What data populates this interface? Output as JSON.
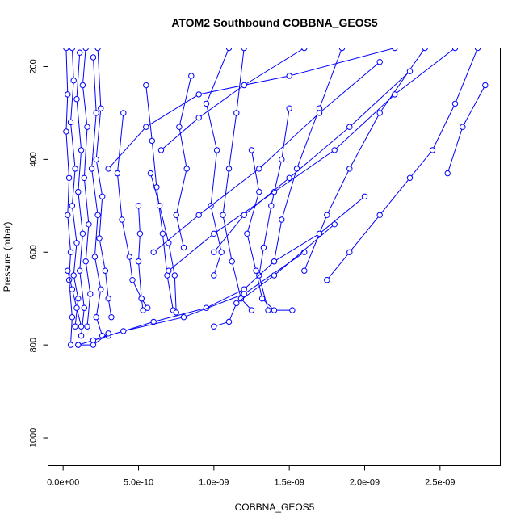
{
  "chart_data": {
    "type": "scatter",
    "title": "ATOM2 Southbound COBBNA_GEOS5",
    "xlabel": "COBBNA_GEOS5",
    "ylabel": "Pressure (mbar)",
    "xlim": [
      -1e-10,
      2.9e-09
    ],
    "ylim": [
      1060,
      160
    ],
    "y_reversed": true,
    "x_ticks": [
      {
        "value": 0,
        "label": "0.0e+00"
      },
      {
        "value": 5e-10,
        "label": "5.0e-10"
      },
      {
        "value": 1e-09,
        "label": "1.0e-09"
      },
      {
        "value": 1.5e-09,
        "label": "1.5e-09"
      },
      {
        "value": 2e-09,
        "label": "2.0e-09"
      },
      {
        "value": 2.5e-09,
        "label": "2.5e-09"
      }
    ],
    "y_ticks": [
      {
        "value": 200,
        "label": "200"
      },
      {
        "value": 400,
        "label": "400"
      },
      {
        "value": 600,
        "label": "600"
      },
      {
        "value": 800,
        "label": "800"
      },
      {
        "value": 1000,
        "label": "1000"
      }
    ],
    "color": "#0000ff",
    "marker": "open-circle",
    "line": true,
    "series": [
      {
        "points": [
          [
            2e-11,
            160
          ],
          [
            3e-11,
            260
          ],
          [
            2e-11,
            340
          ],
          [
            4e-11,
            440
          ],
          [
            3e-11,
            520
          ],
          [
            5e-11,
            600
          ],
          [
            4e-11,
            660
          ],
          [
            6e-11,
            740
          ],
          [
            5e-11,
            800
          ]
        ]
      },
      {
        "points": [
          [
            6e-11,
            160
          ],
          [
            7e-11,
            230
          ],
          [
            5e-11,
            320
          ],
          [
            8e-11,
            420
          ],
          [
            6e-11,
            500
          ],
          [
            9e-11,
            580
          ],
          [
            7e-11,
            650
          ],
          [
            1e-10,
            700
          ],
          [
            8e-11,
            760
          ]
        ]
      },
      {
        "points": [
          [
            1.1e-10,
            170
          ],
          [
            9e-11,
            270
          ],
          [
            1.2e-10,
            380
          ],
          [
            1e-10,
            470
          ],
          [
            1.3e-10,
            560
          ],
          [
            1.1e-10,
            640
          ],
          [
            1.4e-10,
            720
          ],
          [
            1.2e-10,
            780
          ]
        ]
      },
      {
        "points": [
          [
            1.5e-10,
            160
          ],
          [
            1.3e-10,
            240
          ],
          [
            1.6e-10,
            330
          ],
          [
            1.4e-10,
            440
          ],
          [
            1.7e-10,
            540
          ],
          [
            1.5e-10,
            620
          ],
          [
            1.8e-10,
            690
          ],
          [
            1.6e-10,
            760
          ]
        ]
      },
      {
        "points": [
          [
            2e-10,
            180
          ],
          [
            2.2e-10,
            300
          ],
          [
            1.9e-10,
            420
          ],
          [
            2.3e-10,
            520
          ],
          [
            2.1e-10,
            610
          ],
          [
            2.5e-10,
            680
          ],
          [
            2.2e-10,
            740
          ],
          [
            2.6e-10,
            780
          ]
        ]
      },
      {
        "points": [
          [
            2.3e-10,
            160
          ],
          [
            2.5e-10,
            290
          ],
          [
            2.2e-10,
            400
          ],
          [
            2.6e-10,
            480
          ],
          [
            2.4e-10,
            570
          ],
          [
            2.8e-10,
            640
          ],
          [
            3e-10,
            700
          ],
          [
            3.2e-10,
            740
          ]
        ]
      },
      {
        "points": [
          [
            4e-10,
            300
          ],
          [
            3.6e-10,
            430
          ],
          [
            3.9e-10,
            530
          ],
          [
            4.4e-10,
            610
          ],
          [
            4.6e-10,
            660
          ],
          [
            5.2e-10,
            700
          ],
          [
            5.6e-10,
            720
          ]
        ]
      },
      {
        "points": [
          [
            5e-10,
            500
          ],
          [
            5.1e-10,
            560
          ],
          [
            5e-10,
            620
          ],
          [
            5.2e-10,
            700
          ],
          [
            5.3e-10,
            725
          ]
        ]
      },
      {
        "points": [
          [
            5.5e-10,
            240
          ],
          [
            5.9e-10,
            360
          ],
          [
            6.2e-10,
            460
          ],
          [
            6.6e-10,
            560
          ],
          [
            6.9e-10,
            650
          ],
          [
            7.3e-10,
            725
          ]
        ]
      },
      {
        "points": [
          [
            5.8e-10,
            430
          ],
          [
            6.4e-10,
            500
          ],
          [
            7e-10,
            580
          ],
          [
            7.4e-10,
            650
          ],
          [
            7.5e-10,
            730
          ]
        ]
      },
      {
        "points": [
          [
            8.5e-10,
            220
          ],
          [
            7.7e-10,
            330
          ],
          [
            8.2e-10,
            420
          ],
          [
            7.5e-10,
            520
          ],
          [
            8e-10,
            590
          ]
        ]
      },
      {
        "points": [
          [
            1.1e-09,
            160
          ],
          [
            9.5e-10,
            280
          ],
          [
            1.02e-09,
            380
          ],
          [
            9.8e-10,
            500
          ],
          [
            1.05e-09,
            600
          ],
          [
            1e-09,
            650
          ]
        ]
      },
      {
        "points": [
          [
            1.2e-09,
            160
          ],
          [
            1.15e-09,
            300
          ],
          [
            1.1e-09,
            420
          ],
          [
            1.06e-09,
            520
          ],
          [
            1.12e-09,
            620
          ],
          [
            1.18e-09,
            700
          ],
          [
            1.25e-09,
            725
          ]
        ]
      },
      {
        "points": [
          [
            1.25e-09,
            380
          ],
          [
            1.3e-09,
            470
          ],
          [
            1.22e-09,
            560
          ],
          [
            1.28e-09,
            640
          ],
          [
            1.32e-09,
            700
          ],
          [
            1.4e-09,
            725
          ],
          [
            1.52e-09,
            725
          ]
        ]
      },
      {
        "points": [
          [
            1.5e-09,
            290
          ],
          [
            1.45e-09,
            400
          ],
          [
            1.38e-09,
            500
          ],
          [
            1.33e-09,
            590
          ],
          [
            1.3e-09,
            650
          ],
          [
            1.36e-09,
            725
          ]
        ]
      },
      {
        "points": [
          [
            1.85e-09,
            160
          ],
          [
            1.7e-09,
            290
          ],
          [
            1.55e-09,
            420
          ],
          [
            1.45e-09,
            530
          ],
          [
            1.4e-09,
            620
          ]
        ]
      },
      {
        "points": [
          [
            2.4e-09,
            160
          ],
          [
            2.1e-09,
            300
          ],
          [
            1.9e-09,
            420
          ],
          [
            1.75e-09,
            520
          ],
          [
            1.6e-09,
            640
          ]
        ]
      },
      {
        "points": [
          [
            2.75e-09,
            160
          ],
          [
            2.6e-09,
            280
          ],
          [
            2.45e-09,
            380
          ],
          [
            2.3e-09,
            440
          ],
          [
            2.1e-09,
            520
          ],
          [
            1.9e-09,
            600
          ],
          [
            1.75e-09,
            660
          ]
        ]
      },
      {
        "points": [
          [
            2.8e-09,
            240
          ],
          [
            2.65e-09,
            330
          ],
          [
            2.55e-09,
            430
          ]
        ]
      },
      {
        "points": [
          [
            2.6e-09,
            160
          ],
          [
            2.2e-09,
            260
          ],
          [
            1.8e-09,
            380
          ],
          [
            1.4e-09,
            470
          ],
          [
            1e-09,
            560
          ],
          [
            7e-10,
            640
          ]
        ]
      },
      {
        "points": [
          [
            2.2e-09,
            160
          ],
          [
            1.5e-09,
            220
          ],
          [
            9e-10,
            260
          ],
          [
            5.5e-10,
            330
          ],
          [
            3e-10,
            420
          ]
        ]
      },
      {
        "points": [
          [
            1.6e-09,
            160
          ],
          [
            1.2e-09,
            240
          ],
          [
            9e-10,
            310
          ],
          [
            6.5e-10,
            380
          ]
        ]
      },
      {
        "points": [
          [
            2.1e-09,
            190
          ],
          [
            1.7e-09,
            300
          ],
          [
            1.3e-09,
            420
          ],
          [
            9e-10,
            520
          ],
          [
            6e-10,
            600
          ]
        ]
      },
      {
        "points": [
          [
            2.3e-09,
            210
          ],
          [
            1.9e-09,
            330
          ],
          [
            1.5e-09,
            440
          ],
          [
            1.2e-09,
            520
          ],
          [
            1e-09,
            600
          ]
        ]
      },
      {
        "points": [
          [
            2e-09,
            480
          ],
          [
            1.7e-09,
            560
          ],
          [
            1.4e-09,
            620
          ],
          [
            1.2e-09,
            680
          ],
          [
            9.5e-10,
            720
          ],
          [
            6e-10,
            750
          ],
          [
            3e-10,
            780
          ],
          [
            1e-10,
            800
          ]
        ]
      },
      {
        "points": [
          [
            1.6e-09,
            600
          ],
          [
            1.2e-09,
            690
          ],
          [
            8e-10,
            740
          ],
          [
            4e-10,
            770
          ],
          [
            2e-10,
            790
          ]
        ]
      },
      {
        "points": [
          [
            1.8e-09,
            540
          ],
          [
            1.4e-09,
            650
          ],
          [
            1.15e-09,
            710
          ],
          [
            1.1e-09,
            750
          ],
          [
            1e-09,
            760
          ]
        ]
      },
      {
        "points": [
          [
            1e-10,
            800
          ],
          [
            2e-10,
            800
          ],
          [
            3e-10,
            775
          ]
        ]
      },
      {
        "points": [
          [
            3e-11,
            640
          ],
          [
            6e-11,
            680
          ],
          [
            9e-11,
            720
          ],
          [
            1.2e-10,
            760
          ]
        ]
      }
    ]
  }
}
